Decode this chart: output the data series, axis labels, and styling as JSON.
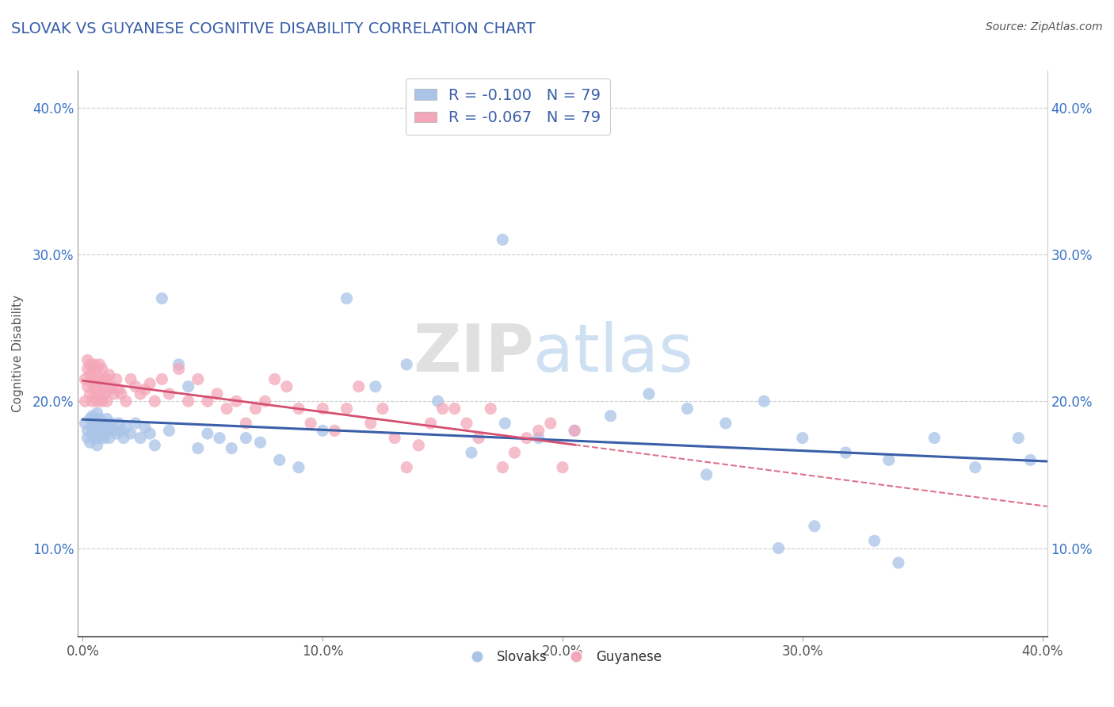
{
  "title": "SLOVAK VS GUYANESE COGNITIVE DISABILITY CORRELATION CHART",
  "source": "Source: ZipAtlas.com",
  "ylabel": "Cognitive Disability",
  "xlim": [
    -0.002,
    0.402
  ],
  "ylim": [
    0.04,
    0.425
  ],
  "xtick_labels": [
    "0.0%",
    "10.0%",
    "20.0%",
    "30.0%",
    "40.0%"
  ],
  "xtick_vals": [
    0.0,
    0.1,
    0.2,
    0.3,
    0.4
  ],
  "ytick_labels": [
    "10.0%",
    "20.0%",
    "30.0%",
    "40.0%"
  ],
  "ytick_vals": [
    0.1,
    0.2,
    0.3,
    0.4
  ],
  "watermark": "ZIPatlas",
  "legend_slovak": "R = -0.100   N = 79",
  "legend_guyanese": "R = -0.067   N = 79",
  "legend_label_slovak": "Slovaks",
  "legend_label_guyanese": "Guyanese",
  "slovak_color": "#aac4e8",
  "guyanese_color": "#f4a7b9",
  "slovak_line_color": "#3a5fa8",
  "guyanese_line_color": "#d45070",
  "title_color": "#3a5fa8",
  "title_fontsize": 14,
  "axis_label_color": "#555555",
  "tick_color": "#555555",
  "grid_color": "#cccccc",
  "slovak_x": [
    0.001,
    0.002,
    0.002,
    0.003,
    0.003,
    0.004,
    0.004,
    0.004,
    0.005,
    0.005,
    0.005,
    0.006,
    0.006,
    0.006,
    0.006,
    0.007,
    0.007,
    0.007,
    0.008,
    0.008,
    0.008,
    0.009,
    0.009,
    0.01,
    0.01,
    0.011,
    0.011,
    0.012,
    0.013,
    0.014,
    0.015,
    0.016,
    0.017,
    0.018,
    0.02,
    0.022,
    0.024,
    0.026,
    0.028,
    0.03,
    0.033,
    0.036,
    0.04,
    0.044,
    0.048,
    0.052,
    0.057,
    0.062,
    0.068,
    0.074,
    0.082,
    0.09,
    0.1,
    0.11,
    0.122,
    0.135,
    0.148,
    0.162,
    0.176,
    0.19,
    0.205,
    0.22,
    0.236,
    0.252,
    0.268,
    0.284,
    0.3,
    0.318,
    0.336,
    0.355,
    0.372,
    0.39,
    0.305,
    0.26,
    0.34,
    0.395,
    0.33,
    0.29,
    0.175
  ],
  "slovak_y": [
    0.185,
    0.18,
    0.175,
    0.188,
    0.172,
    0.182,
    0.19,
    0.178,
    0.183,
    0.175,
    0.188,
    0.178,
    0.185,
    0.192,
    0.17,
    0.182,
    0.175,
    0.188,
    0.18,
    0.185,
    0.178,
    0.185,
    0.175,
    0.18,
    0.188,
    0.182,
    0.175,
    0.185,
    0.18,
    0.178,
    0.185,
    0.18,
    0.175,
    0.182,
    0.178,
    0.185,
    0.175,
    0.182,
    0.178,
    0.17,
    0.27,
    0.18,
    0.225,
    0.21,
    0.168,
    0.178,
    0.175,
    0.168,
    0.175,
    0.172,
    0.16,
    0.155,
    0.18,
    0.27,
    0.21,
    0.225,
    0.2,
    0.165,
    0.185,
    0.175,
    0.18,
    0.19,
    0.205,
    0.195,
    0.185,
    0.2,
    0.175,
    0.165,
    0.16,
    0.175,
    0.155,
    0.175,
    0.115,
    0.15,
    0.09,
    0.16,
    0.105,
    0.1,
    0.31
  ],
  "guyanese_x": [
    0.001,
    0.001,
    0.002,
    0.002,
    0.002,
    0.003,
    0.003,
    0.003,
    0.004,
    0.004,
    0.004,
    0.005,
    0.005,
    0.005,
    0.006,
    0.006,
    0.006,
    0.007,
    0.007,
    0.007,
    0.008,
    0.008,
    0.008,
    0.009,
    0.009,
    0.01,
    0.01,
    0.011,
    0.011,
    0.012,
    0.013,
    0.014,
    0.015,
    0.016,
    0.018,
    0.02,
    0.022,
    0.024,
    0.026,
    0.028,
    0.03,
    0.033,
    0.036,
    0.04,
    0.044,
    0.048,
    0.052,
    0.056,
    0.06,
    0.064,
    0.068,
    0.072,
    0.076,
    0.08,
    0.085,
    0.09,
    0.095,
    0.1,
    0.105,
    0.11,
    0.115,
    0.12,
    0.125,
    0.13,
    0.135,
    0.14,
    0.145,
    0.15,
    0.155,
    0.16,
    0.165,
    0.17,
    0.175,
    0.18,
    0.185,
    0.19,
    0.195,
    0.2,
    0.205
  ],
  "guyanese_y": [
    0.2,
    0.215,
    0.222,
    0.21,
    0.228,
    0.205,
    0.218,
    0.225,
    0.2,
    0.212,
    0.222,
    0.205,
    0.215,
    0.225,
    0.2,
    0.21,
    0.222,
    0.205,
    0.215,
    0.225,
    0.2,
    0.212,
    0.222,
    0.205,
    0.215,
    0.2,
    0.215,
    0.208,
    0.218,
    0.21,
    0.205,
    0.215,
    0.208,
    0.205,
    0.2,
    0.215,
    0.21,
    0.205,
    0.208,
    0.212,
    0.2,
    0.215,
    0.205,
    0.222,
    0.2,
    0.215,
    0.2,
    0.205,
    0.195,
    0.2,
    0.185,
    0.195,
    0.2,
    0.215,
    0.21,
    0.195,
    0.185,
    0.195,
    0.18,
    0.195,
    0.21,
    0.185,
    0.195,
    0.175,
    0.155,
    0.17,
    0.185,
    0.195,
    0.195,
    0.185,
    0.175,
    0.195,
    0.155,
    0.165,
    0.175,
    0.18,
    0.185,
    0.155,
    0.18
  ]
}
